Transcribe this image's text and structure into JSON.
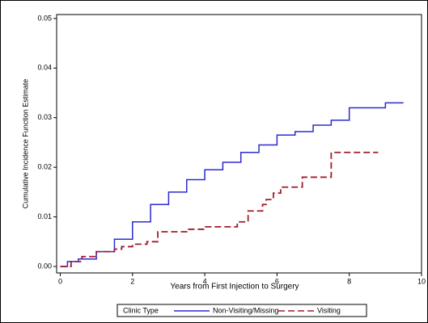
{
  "chart_data": {
    "type": "step",
    "xlabel": "Years from First Injection to Surgery",
    "ylabel": "Cumulative Incidence Function Estimate",
    "legend_title": "Clinic Type",
    "legend": "bottom",
    "xlim": [
      -0.1,
      10
    ],
    "ylim": [
      -0.0013,
      0.0508
    ],
    "xticks": [
      0,
      2,
      4,
      6,
      8,
      10
    ],
    "yticks": [
      {
        "value": 0,
        "label": "0.00"
      },
      {
        "value": 0.01,
        "label": "0.01"
      },
      {
        "value": 0.02,
        "label": "0.02"
      },
      {
        "value": 0.03,
        "label": "0.03"
      },
      {
        "value": 0.04,
        "label": "0.04"
      },
      {
        "value": 0.05,
        "label": "0.05"
      }
    ],
    "series": [
      {
        "name": "Non-Visiting/Missing",
        "color": "#2b2bd0",
        "dash": false,
        "x": [
          0,
          0.2,
          0.5,
          1,
          1.5,
          2,
          2.5,
          3,
          3.5,
          4,
          4.5,
          5,
          5.5,
          6,
          6.5,
          7,
          7.5,
          8,
          8.5,
          9,
          9.5
        ],
        "values": [
          0,
          0.001,
          0.0015,
          0.003,
          0.0055,
          0.009,
          0.0125,
          0.015,
          0.0175,
          0.0195,
          0.021,
          0.023,
          0.0245,
          0.0265,
          0.0272,
          0.0285,
          0.0295,
          0.032,
          0.032,
          0.033,
          0.033
        ]
      },
      {
        "name": "Visiting",
        "color": "#a01c2c",
        "dash": true,
        "x": [
          0,
          0.3,
          0.6,
          1,
          1.5,
          1.7,
          2,
          2.4,
          2.7,
          3.5,
          4,
          4.9,
          5.2,
          5.6,
          5.7,
          5.9,
          6.1,
          6.7,
          7.5,
          8.8
        ],
        "values": [
          0,
          0.001,
          0.002,
          0.003,
          0.0035,
          0.004,
          0.0045,
          0.005,
          0.007,
          0.0075,
          0.008,
          0.009,
          0.0112,
          0.0125,
          0.0135,
          0.0148,
          0.016,
          0.018,
          0.023,
          0.023
        ]
      }
    ]
  }
}
